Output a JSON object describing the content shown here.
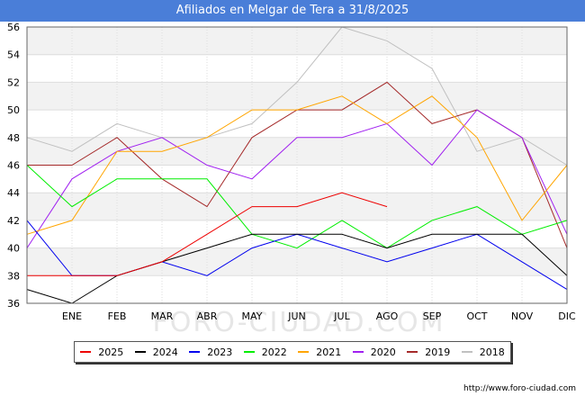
{
  "title": "Afiliados en Melgar de Tera a 31/8/2025",
  "watermark": "FORO-CIUDAD.COM",
  "footer_url": "http://www.foro-ciudad.com",
  "chart_data": {
    "type": "line",
    "title": "Afiliados en Melgar de Tera a 31/8/2025",
    "xlabel": "",
    "ylabel": "",
    "categories": [
      "",
      "ENE",
      "FEB",
      "MAR",
      "ABR",
      "MAY",
      "JUN",
      "JUL",
      "AGO",
      "SEP",
      "OCT",
      "NOV",
      "DIC"
    ],
    "ylim": [
      36,
      56
    ],
    "yticks": [
      36,
      38,
      40,
      42,
      44,
      46,
      48,
      50,
      52,
      54,
      56
    ],
    "grid": "horizontal bands",
    "legend_position": "bottom",
    "series": [
      {
        "name": "2025",
        "color": "#ee0000",
        "values": [
          38,
          38,
          38,
          39,
          41,
          43,
          43,
          44,
          43,
          null,
          null,
          null,
          null
        ]
      },
      {
        "name": "2024",
        "color": "#000000",
        "values": [
          37,
          36,
          38,
          39,
          40,
          41,
          41,
          41,
          40,
          41,
          41,
          41,
          38
        ]
      },
      {
        "name": "2023",
        "color": "#0000ee",
        "values": [
          42,
          38,
          38,
          39,
          38,
          40,
          41,
          40,
          39,
          40,
          41,
          39,
          37
        ]
      },
      {
        "name": "2022",
        "color": "#00ee00",
        "values": [
          46,
          43,
          45,
          45,
          45,
          41,
          40,
          42,
          40,
          42,
          43,
          41,
          42
        ]
      },
      {
        "name": "2021",
        "color": "#ffa500",
        "values": [
          41,
          42,
          47,
          47,
          48,
          50,
          50,
          51,
          49,
          51,
          48,
          42,
          46
        ]
      },
      {
        "name": "2020",
        "color": "#a020f0",
        "values": [
          40,
          45,
          47,
          48,
          46,
          45,
          48,
          48,
          49,
          46,
          50,
          48,
          41
        ]
      },
      {
        "name": "2019",
        "color": "#a52a2a",
        "values": [
          46,
          46,
          48,
          45,
          43,
          48,
          50,
          50,
          52,
          49,
          50,
          48,
          40
        ]
      },
      {
        "name": "2018",
        "color": "#c0c0c0",
        "values": [
          48,
          47,
          49,
          48,
          48,
          49,
          52,
          56,
          55,
          53,
          47,
          48,
          46
        ]
      }
    ]
  }
}
